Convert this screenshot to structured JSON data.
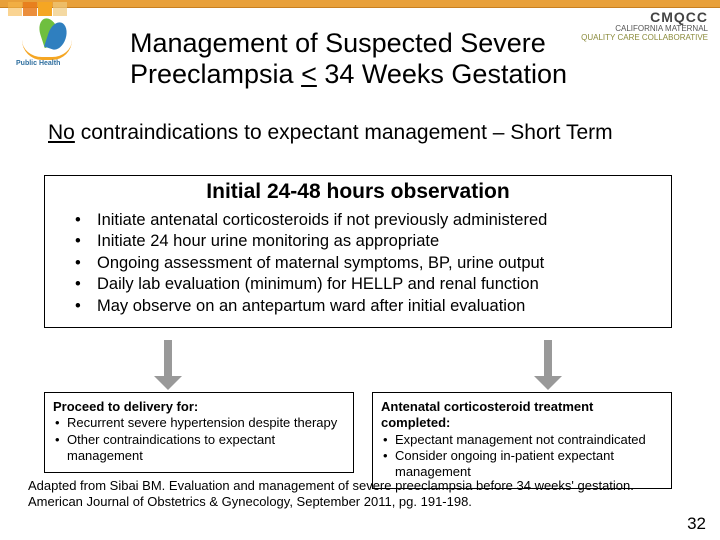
{
  "colors": {
    "orange_bar": "#e8a03a",
    "arrow": "#999999",
    "box_border": "#000000",
    "background": "#ffffff"
  },
  "logos": {
    "public_health_label": "Public Health",
    "cmqcc": {
      "name": "CMQCC",
      "sub1": "CALIFORNIA MATERNAL",
      "sub2": "QUALITY CARE COLLABORATIVE"
    }
  },
  "title": {
    "line1": "Management of Suspected Severe",
    "line2_pre": "Preeclampsia ",
    "line2_underline": "<",
    "line2_post": " 34 Weeks Gestation"
  },
  "subtitle": {
    "underline_word": "No",
    "rest": " contraindications to expectant management – Short Term"
  },
  "observation": {
    "heading": "Initial 24-48 hours observation",
    "items": [
      "Initiate antenatal corticosteroids if not previously administered",
      "Initiate 24 hour urine monitoring as appropriate",
      "Ongoing assessment of maternal symptoms, BP, urine output",
      "Daily lab evaluation (minimum) for HELLP and renal function",
      "May observe on an antepartum ward after initial evaluation"
    ]
  },
  "lower_left": {
    "header": "Proceed to delivery for:",
    "items": [
      "Recurrent severe hypertension despite therapy",
      "Other contraindications to expectant management"
    ]
  },
  "lower_right": {
    "header": "Antenatal corticosteroid treatment completed:",
    "items": [
      "Expectant management not contraindicated",
      "Consider ongoing in-patient expectant management"
    ]
  },
  "citation": "Adapted from Sibai BM. Evaluation and management of severe preeclampsia before 34 weeks' gestation. American Journal of Obstetrics & Gynecology, September 2011, pg. 191-198.",
  "page_number": "32"
}
